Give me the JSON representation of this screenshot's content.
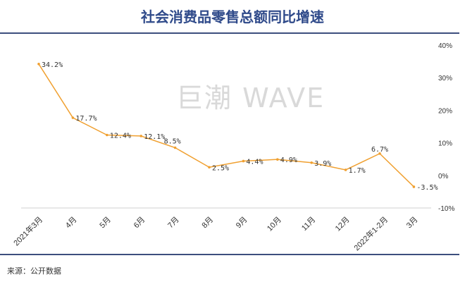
{
  "chart_data": {
    "type": "line",
    "title": "社会消费品零售总额同比增速",
    "categories": [
      "2021年3月",
      "4月",
      "5月",
      "6月",
      "7月",
      "8月",
      "9月",
      "10月",
      "11月",
      "12月",
      "2022年1-2月",
      "3月"
    ],
    "values": [
      34.2,
      17.7,
      12.4,
      12.1,
      8.5,
      2.5,
      4.4,
      4.9,
      3.9,
      1.7,
      6.7,
      -3.5
    ],
    "labels": [
      "34.2%",
      "17.7%",
      "12.4%",
      "12.1%",
      "8.5%",
      "2.5%",
      "4.4%",
      "4.9%",
      "3.9%",
      "1.7%",
      "6.7%",
      "-3.5%"
    ],
    "ylim": [
      -10,
      40
    ],
    "yticks": [
      "40%",
      "30%",
      "20%",
      "10%",
      "0%",
      "-10%"
    ],
    "yaxis_position": "right",
    "series_color": "#f0a030",
    "xlabel": "",
    "ylabel": ""
  },
  "watermark": "巨潮 WAVE",
  "source": "来源：公开数据"
}
